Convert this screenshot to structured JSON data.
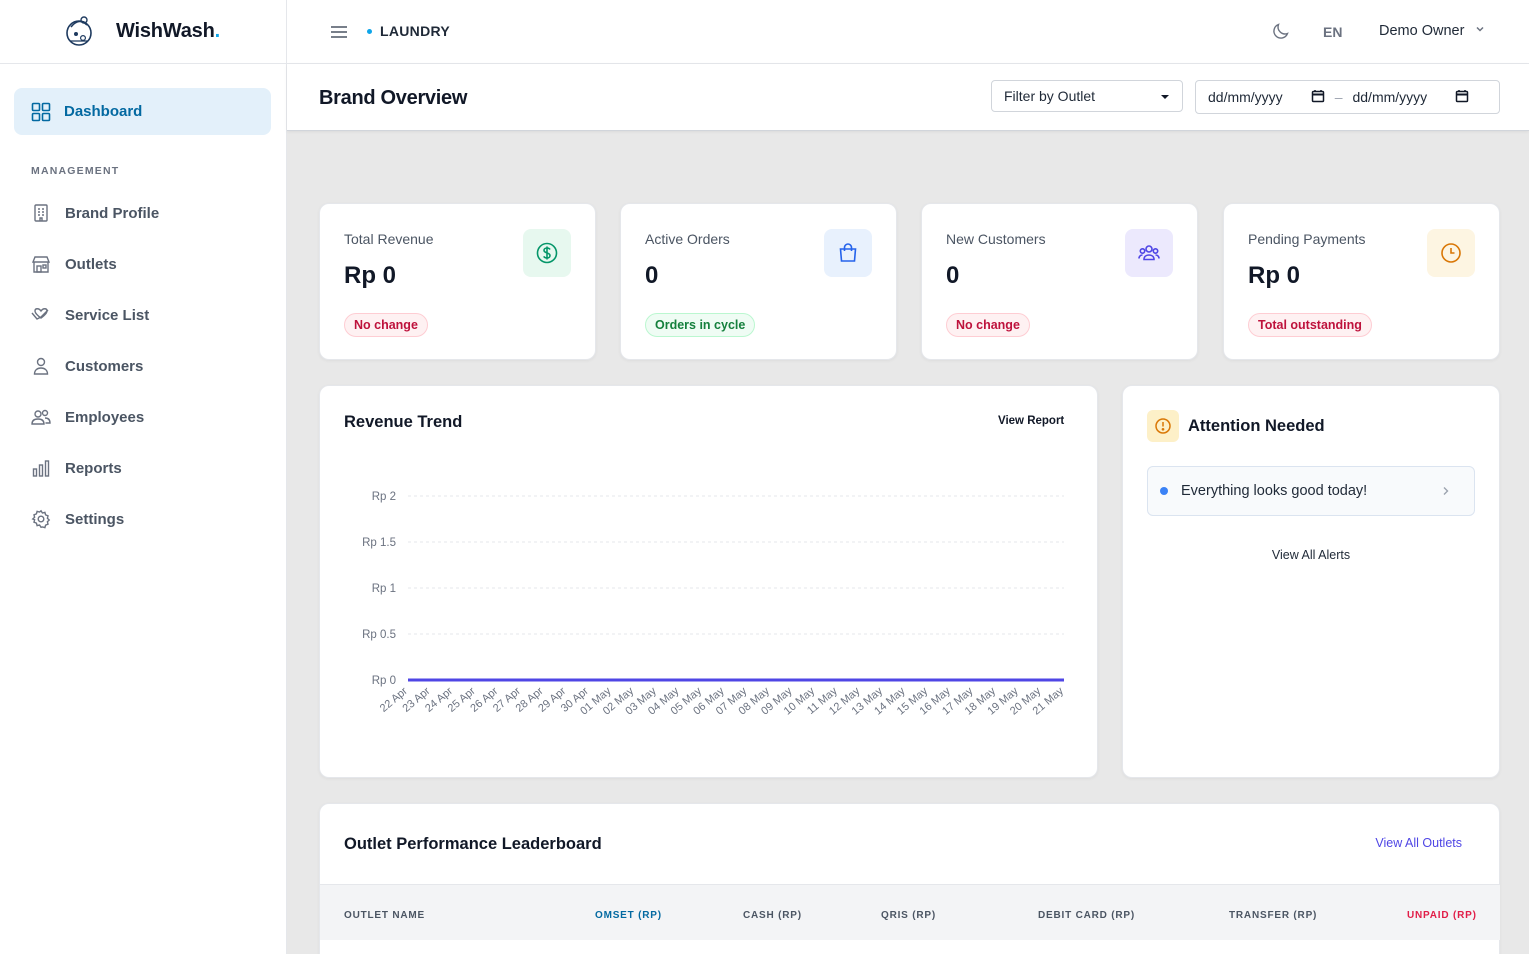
{
  "brand": {
    "name": "WishWash",
    "dot": "."
  },
  "sidebar": {
    "active": {
      "label": "Dashboard",
      "icon": "grid-icon"
    },
    "section_title": "MANAGEMENT",
    "items": [
      {
        "label": "Brand Profile",
        "icon": "building-icon"
      },
      {
        "label": "Outlets",
        "icon": "store-icon"
      },
      {
        "label": "Service List",
        "icon": "hand-heart-icon"
      },
      {
        "label": "Customers",
        "icon": "user-icon"
      },
      {
        "label": "Employees",
        "icon": "users-icon"
      },
      {
        "label": "Reports",
        "icon": "bar-chart-icon"
      },
      {
        "label": "Settings",
        "icon": "gear-icon"
      }
    ]
  },
  "header": {
    "breadcrumb": "LAUNDRY",
    "language": "EN",
    "user": "Demo Owner"
  },
  "page": {
    "title": "Brand Overview",
    "filter_placeholder": "Filter by Outlet",
    "date_from": "dd/mm/yyyy",
    "date_sep": "–",
    "date_to": "dd/mm/yyyy"
  },
  "stats": [
    {
      "title": "Total Revenue",
      "value": "Rp 0",
      "badge": "No change",
      "badge_type": "red",
      "icon": "dollar-icon",
      "icon_bg": "#e7f8ef",
      "icon_color": "#059669"
    },
    {
      "title": "Active Orders",
      "value": "0",
      "badge": "Orders in cycle",
      "badge_type": "green",
      "icon": "shopping-bag-icon",
      "icon_bg": "#e8f1fd",
      "icon_color": "#2563eb"
    },
    {
      "title": "New Customers",
      "value": "0",
      "badge": "No change",
      "badge_type": "red",
      "icon": "users-icon",
      "icon_bg": "#ece9fd",
      "icon_color": "#4f46e5"
    },
    {
      "title": "Pending Payments",
      "value": "Rp 0",
      "badge": "Total outstanding",
      "badge_type": "red",
      "icon": "clock-icon",
      "icon_bg": "#fdf5e2",
      "icon_color": "#d97706"
    }
  ],
  "revenue": {
    "title": "Revenue Trend",
    "view_report": "View Report"
  },
  "chart_data": {
    "type": "line",
    "title": "Revenue Trend",
    "xlabel": "",
    "ylabel": "",
    "y_ticks": [
      "Rp 0",
      "Rp 0.5",
      "Rp 1",
      "Rp 1.5",
      "Rp 2"
    ],
    "ylim": [
      0,
      2
    ],
    "grid": true,
    "line_color": "#4f46e5",
    "x": [
      "22 Apr",
      "23 Apr",
      "24 Apr",
      "25 Apr",
      "26 Apr",
      "27 Apr",
      "28 Apr",
      "29 Apr",
      "30 Apr",
      "01 May",
      "02 May",
      "03 May",
      "04 May",
      "05 May",
      "06 May",
      "07 May",
      "08 May",
      "09 May",
      "10 May",
      "11 May",
      "12 May",
      "13 May",
      "14 May",
      "15 May",
      "16 May",
      "17 May",
      "18 May",
      "19 May",
      "20 May",
      "21 May"
    ],
    "series": [
      {
        "values": [
          0,
          0,
          0,
          0,
          0,
          0,
          0,
          0,
          0,
          0,
          0,
          0,
          0,
          0,
          0,
          0,
          0,
          0,
          0,
          0,
          0,
          0,
          0,
          0,
          0,
          0,
          0,
          0,
          0,
          0
        ]
      }
    ]
  },
  "attention": {
    "title": "Attention Needed",
    "alert": "Everything looks good today!",
    "view_all": "View All Alerts"
  },
  "leaderboard": {
    "title": "Outlet Performance Leaderboard",
    "view_all": "View All Outlets",
    "columns": [
      "OUTLET NAME",
      "OMSET (RP)",
      "CASH (RP)",
      "QRIS (RP)",
      "DEBIT CARD (RP)",
      "TRANSFER (RP)",
      "UNPAID (RP)"
    ],
    "column_colors": [
      "#4b5563",
      "#0369a1",
      "#4b5563",
      "#4b5563",
      "#4b5563",
      "#4b5563",
      "#e11d48"
    ]
  }
}
